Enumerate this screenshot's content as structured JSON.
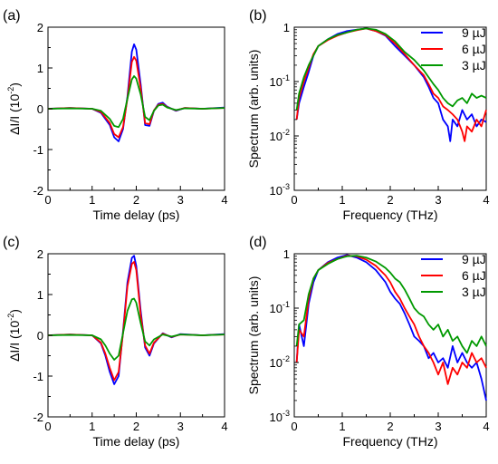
{
  "figure": {
    "colors": {
      "9 µJ": "#0000ff",
      "6 µJ": "#ff0000",
      "3 µJ": "#009900"
    }
  },
  "chart_data": [
    {
      "panel": "(a)",
      "type": "line",
      "xlabel": "Time delay (ps)",
      "ylabel": "ΔI/I (10-2)",
      "xlim": [
        0,
        4
      ],
      "ylim": [
        -2,
        2
      ],
      "xticks": [
        0,
        1,
        2,
        3,
        4
      ],
      "yticks": [
        -2,
        -1,
        0,
        1,
        2
      ],
      "yscale": "linear",
      "grid": false,
      "series": [
        {
          "name": "9 µJ",
          "color": "#0000ff",
          "x": [
            0,
            0.5,
            1.0,
            1.2,
            1.4,
            1.5,
            1.6,
            1.7,
            1.8,
            1.9,
            1.95,
            2.0,
            2.1,
            2.2,
            2.3,
            2.4,
            2.5,
            2.6,
            2.7,
            2.9,
            3.1,
            3.5,
            4.0
          ],
          "y": [
            0,
            0.02,
            0,
            -0.1,
            -0.4,
            -0.7,
            -0.8,
            -0.5,
            0.3,
            1.4,
            1.58,
            1.45,
            0.6,
            -0.4,
            -0.42,
            -0.05,
            0.12,
            0.15,
            0.05,
            -0.05,
            0.02,
            0,
            0.03
          ]
        },
        {
          "name": "6 µJ",
          "color": "#ff0000",
          "x": [
            0,
            0.5,
            1.0,
            1.2,
            1.4,
            1.5,
            1.6,
            1.7,
            1.8,
            1.9,
            1.95,
            2.0,
            2.1,
            2.2,
            2.3,
            2.4,
            2.5,
            2.6,
            2.7,
            2.9,
            3.1,
            3.5,
            4.0
          ],
          "y": [
            0,
            0.02,
            0,
            -0.08,
            -0.35,
            -0.62,
            -0.7,
            -0.45,
            0.25,
            1.15,
            1.27,
            1.18,
            0.5,
            -0.35,
            -0.38,
            -0.04,
            0.1,
            0.12,
            0.04,
            -0.04,
            0.02,
            0,
            0.02
          ]
        },
        {
          "name": "3 µJ",
          "color": "#009900",
          "x": [
            0,
            0.5,
            1.0,
            1.2,
            1.4,
            1.5,
            1.6,
            1.7,
            1.8,
            1.9,
            1.95,
            2.0,
            2.1,
            2.2,
            2.3,
            2.4,
            2.5,
            2.6,
            2.7,
            2.9,
            3.1,
            3.5,
            4.0
          ],
          "y": [
            0,
            0.01,
            0,
            -0.05,
            -0.25,
            -0.42,
            -0.45,
            -0.25,
            0.25,
            0.72,
            0.8,
            0.74,
            0.35,
            -0.2,
            -0.28,
            -0.05,
            0.08,
            0.1,
            0.03,
            -0.03,
            0.01,
            0,
            0.02
          ]
        }
      ]
    },
    {
      "panel": "(b)",
      "type": "line",
      "xlabel": "Frequency (THz)",
      "ylabel": "Spectrum (arb. units)",
      "xlim": [
        0,
        4
      ],
      "ylim": [
        0.001,
        1
      ],
      "xticks": [
        0,
        1,
        2,
        3,
        4
      ],
      "yticks": [
        0.001,
        0.01,
        0.1,
        1
      ],
      "ytick_labels": [
        "10-3",
        "10-2",
        "10-1",
        "1"
      ],
      "yscale": "log",
      "grid": false,
      "legend": {
        "position": "top-right",
        "entries": [
          "9 µJ",
          "6 µJ",
          "3 µJ"
        ]
      },
      "series": [
        {
          "name": "9 µJ",
          "color": "#0000ff",
          "x": [
            0.05,
            0.1,
            0.2,
            0.3,
            0.4,
            0.5,
            0.7,
            0.9,
            1.1,
            1.3,
            1.5,
            1.7,
            1.9,
            2.1,
            2.3,
            2.5,
            2.7,
            2.8,
            2.9,
            3.0,
            3.1,
            3.2,
            3.25,
            3.3,
            3.4,
            3.5,
            3.6,
            3.7,
            3.8,
            3.9,
            4.0
          ],
          "y": [
            0.02,
            0.04,
            0.08,
            0.15,
            0.3,
            0.45,
            0.6,
            0.75,
            0.85,
            0.9,
            0.95,
            0.85,
            0.7,
            0.45,
            0.3,
            0.2,
            0.12,
            0.08,
            0.05,
            0.04,
            0.02,
            0.015,
            0.008,
            0.02,
            0.015,
            0.03,
            0.02,
            0.025,
            0.015,
            0.02,
            0.018
          ]
        },
        {
          "name": "6 µJ",
          "color": "#ff0000",
          "x": [
            0.05,
            0.1,
            0.2,
            0.3,
            0.4,
            0.5,
            0.7,
            0.9,
            1.1,
            1.3,
            1.5,
            1.7,
            1.9,
            2.1,
            2.3,
            2.5,
            2.7,
            2.8,
            2.9,
            3.0,
            3.1,
            3.2,
            3.3,
            3.4,
            3.5,
            3.55,
            3.6,
            3.7,
            3.8,
            3.9,
            4.0
          ],
          "y": [
            0.02,
            0.05,
            0.1,
            0.18,
            0.32,
            0.45,
            0.58,
            0.7,
            0.8,
            0.88,
            0.95,
            0.85,
            0.72,
            0.5,
            0.32,
            0.2,
            0.13,
            0.09,
            0.06,
            0.05,
            0.035,
            0.03,
            0.025,
            0.02,
            0.012,
            0.008,
            0.015,
            0.012,
            0.02,
            0.015,
            0.03
          ]
        },
        {
          "name": "3 µJ",
          "color": "#009900",
          "x": [
            0.05,
            0.1,
            0.2,
            0.3,
            0.4,
            0.5,
            0.7,
            0.9,
            1.1,
            1.3,
            1.5,
            1.7,
            1.9,
            2.1,
            2.3,
            2.5,
            2.7,
            2.8,
            2.9,
            3.0,
            3.1,
            3.2,
            3.3,
            3.4,
            3.5,
            3.6,
            3.7,
            3.8,
            3.9,
            4.0
          ],
          "y": [
            0.03,
            0.06,
            0.12,
            0.2,
            0.3,
            0.45,
            0.6,
            0.72,
            0.8,
            0.9,
            0.95,
            0.9,
            0.75,
            0.55,
            0.35,
            0.25,
            0.16,
            0.12,
            0.09,
            0.07,
            0.05,
            0.04,
            0.035,
            0.045,
            0.05,
            0.04,
            0.06,
            0.05,
            0.055,
            0.05
          ]
        }
      ]
    },
    {
      "panel": "(c)",
      "type": "line",
      "xlabel": "Time delay (ps)",
      "ylabel": "ΔI/I (10-2)",
      "xlim": [
        0,
        4
      ],
      "ylim": [
        -2,
        2
      ],
      "xticks": [
        0,
        1,
        2,
        3,
        4
      ],
      "yticks": [
        -2,
        -1,
        0,
        1,
        2
      ],
      "yscale": "linear",
      "grid": false,
      "series": [
        {
          "name": "9 µJ",
          "color": "#0000ff",
          "x": [
            0,
            0.5,
            1.0,
            1.2,
            1.3,
            1.4,
            1.5,
            1.6,
            1.7,
            1.8,
            1.9,
            1.95,
            2.0,
            2.1,
            2.2,
            2.3,
            2.4,
            2.6,
            2.8,
            3.0,
            3.5,
            4.0
          ],
          "y": [
            0,
            0.02,
            0,
            -0.2,
            -0.5,
            -0.9,
            -1.2,
            -1.0,
            0.1,
            1.3,
            1.9,
            1.95,
            1.7,
            0.6,
            -0.3,
            -0.5,
            -0.2,
            0.05,
            -0.05,
            0.03,
            0,
            0.03
          ]
        },
        {
          "name": "6 µJ",
          "color": "#ff0000",
          "x": [
            0,
            0.5,
            1.0,
            1.2,
            1.3,
            1.4,
            1.5,
            1.6,
            1.7,
            1.8,
            1.9,
            1.95,
            2.0,
            2.1,
            2.2,
            2.3,
            2.4,
            2.6,
            2.8,
            3.0,
            3.5,
            4.0
          ],
          "y": [
            0,
            0.02,
            0,
            -0.18,
            -0.45,
            -0.8,
            -1.1,
            -0.9,
            0.05,
            1.2,
            1.75,
            1.8,
            1.6,
            0.5,
            -0.25,
            -0.45,
            -0.18,
            0.04,
            -0.04,
            0.02,
            0,
            0.02
          ]
        },
        {
          "name": "3 µJ",
          "color": "#009900",
          "x": [
            0,
            0.5,
            1.0,
            1.2,
            1.3,
            1.4,
            1.5,
            1.6,
            1.7,
            1.8,
            1.9,
            1.95,
            2.0,
            2.1,
            2.2,
            2.3,
            2.4,
            2.6,
            2.8,
            3.0,
            3.5,
            4.0
          ],
          "y": [
            0,
            0.01,
            0,
            -0.1,
            -0.25,
            -0.45,
            -0.6,
            -0.5,
            0.05,
            0.6,
            0.88,
            0.9,
            0.8,
            0.3,
            -0.15,
            -0.25,
            -0.1,
            0.02,
            -0.03,
            0.02,
            0,
            0.02
          ]
        }
      ]
    },
    {
      "panel": "(d)",
      "type": "line",
      "xlabel": "Frequency (THz)",
      "ylabel": "Spectrum (arb. units)",
      "xlim": [
        0,
        4
      ],
      "ylim": [
        0.001,
        1
      ],
      "xticks": [
        0,
        1,
        2,
        3,
        4
      ],
      "yticks": [
        0.001,
        0.01,
        0.1,
        1
      ],
      "ytick_labels": [
        "10-3",
        "10-2",
        "10-1",
        "1"
      ],
      "yscale": "log",
      "grid": false,
      "legend": {
        "position": "top-right",
        "entries": [
          "9 µJ",
          "6 µJ",
          "3 µJ"
        ]
      },
      "series": [
        {
          "name": "9 µJ",
          "color": "#0000ff",
          "x": [
            0.05,
            0.1,
            0.2,
            0.3,
            0.4,
            0.5,
            0.7,
            0.9,
            1.1,
            1.3,
            1.5,
            1.7,
            1.9,
            2.0,
            2.1,
            2.2,
            2.3,
            2.4,
            2.5,
            2.6,
            2.7,
            2.8,
            2.9,
            3.0,
            3.1,
            3.2,
            3.3,
            3.4,
            3.5,
            3.6,
            3.7,
            3.8,
            3.9,
            4.0
          ],
          "y": [
            0.01,
            0.05,
            0.02,
            0.12,
            0.3,
            0.5,
            0.7,
            0.85,
            0.95,
            0.85,
            0.7,
            0.5,
            0.3,
            0.2,
            0.15,
            0.12,
            0.08,
            0.05,
            0.03,
            0.025,
            0.02,
            0.012,
            0.015,
            0.01,
            0.012,
            0.008,
            0.02,
            0.01,
            0.015,
            0.01,
            0.008,
            0.01,
            0.005,
            0.002
          ]
        },
        {
          "name": "6 µJ",
          "color": "#ff0000",
          "x": [
            0.05,
            0.1,
            0.2,
            0.3,
            0.4,
            0.5,
            0.7,
            0.9,
            1.1,
            1.3,
            1.5,
            1.7,
            1.9,
            2.0,
            2.1,
            2.2,
            2.3,
            2.4,
            2.5,
            2.6,
            2.7,
            2.8,
            2.9,
            3.0,
            3.1,
            3.2,
            3.3,
            3.4,
            3.5,
            3.6,
            3.7,
            3.8,
            3.9,
            4.0
          ],
          "y": [
            0.01,
            0.04,
            0.03,
            0.15,
            0.35,
            0.5,
            0.68,
            0.8,
            0.92,
            0.9,
            0.78,
            0.6,
            0.4,
            0.3,
            0.2,
            0.15,
            0.1,
            0.07,
            0.05,
            0.03,
            0.02,
            0.015,
            0.01,
            0.006,
            0.01,
            0.004,
            0.008,
            0.006,
            0.01,
            0.008,
            0.015,
            0.01,
            0.012,
            0.008
          ]
        },
        {
          "name": "3 µJ",
          "color": "#009900",
          "x": [
            0.05,
            0.1,
            0.2,
            0.3,
            0.4,
            0.5,
            0.7,
            0.9,
            1.1,
            1.3,
            1.5,
            1.7,
            1.9,
            2.0,
            2.1,
            2.2,
            2.3,
            2.4,
            2.5,
            2.6,
            2.7,
            2.8,
            2.9,
            3.0,
            3.1,
            3.2,
            3.3,
            3.4,
            3.5,
            3.6,
            3.7,
            3.8,
            3.9,
            4.0
          ],
          "y": [
            0.02,
            0.05,
            0.06,
            0.18,
            0.35,
            0.5,
            0.65,
            0.8,
            0.9,
            0.92,
            0.85,
            0.72,
            0.55,
            0.45,
            0.35,
            0.3,
            0.22,
            0.15,
            0.1,
            0.08,
            0.07,
            0.05,
            0.04,
            0.05,
            0.03,
            0.04,
            0.025,
            0.03,
            0.02,
            0.015,
            0.025,
            0.02,
            0.03,
            0.02
          ]
        }
      ]
    }
  ]
}
